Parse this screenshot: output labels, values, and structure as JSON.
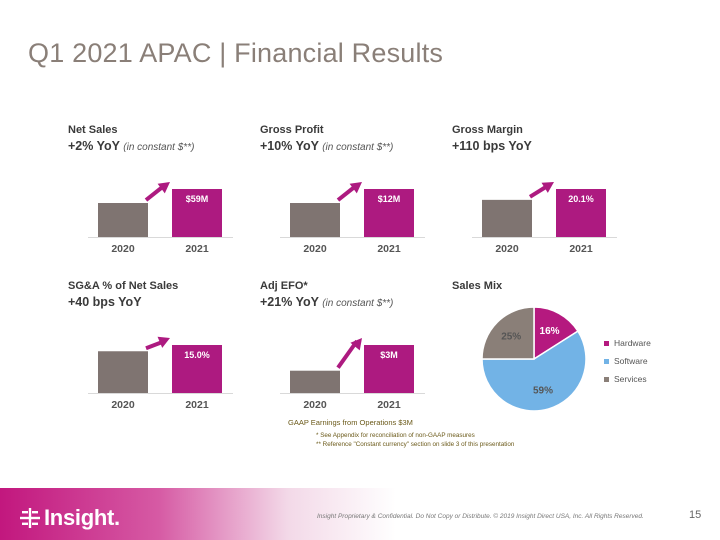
{
  "title": "Q1 2021 APAC | Financial Results",
  "colors": {
    "prior": "#7f7471",
    "current": "#ad1a80",
    "arrow": "#ad1a80",
    "hardware": "#b5197f",
    "software": "#72b3e6",
    "services": "#8a7f78"
  },
  "panels": [
    {
      "label": "Net Sales",
      "value": "+2% YoY",
      "note": "(in constant $**)"
    },
    {
      "label": "Gross Profit",
      "value": "+10% YoY",
      "note": "(in constant $**)"
    },
    {
      "label": "Gross Margin",
      "value": "+110 bps YoY",
      "note": ""
    },
    {
      "label": "SG&A % of Net Sales",
      "value": "+40 bps YoY",
      "note": ""
    },
    {
      "label": "Adj EFO*",
      "value": "+21% YoY",
      "note": "(in constant $**)"
    },
    {
      "label": "Sales Mix",
      "value": "",
      "note": ""
    }
  ],
  "chart_data": [
    {
      "type": "bar",
      "title": "Net Sales",
      "categories": [
        "2020",
        "2021"
      ],
      "values": [
        0.92,
        1.0
      ],
      "data_labels": [
        "",
        "$59M"
      ]
    },
    {
      "type": "bar",
      "title": "Gross Profit",
      "categories": [
        "2020",
        "2021"
      ],
      "values": [
        0.92,
        1.0
      ],
      "data_labels": [
        "",
        "$12M"
      ]
    },
    {
      "type": "bar",
      "title": "Gross Margin",
      "categories": [
        "2020",
        "2021"
      ],
      "values": [
        19.0,
        20.1
      ],
      "data_labels": [
        "",
        "20.1%"
      ]
    },
    {
      "type": "bar",
      "title": "SG&A % of Net Sales",
      "categories": [
        "2020",
        "2021"
      ],
      "values": [
        14.6,
        15.0
      ],
      "data_labels": [
        "",
        "15.0%"
      ]
    },
    {
      "type": "bar",
      "title": "Adj EFO*",
      "categories": [
        "2020",
        "2021"
      ],
      "values": [
        0.75,
        1.0
      ],
      "data_labels": [
        "",
        "$3M"
      ]
    },
    {
      "type": "pie",
      "title": "Sales Mix",
      "categories": [
        "Hardware",
        "Software",
        "Services"
      ],
      "values": [
        16,
        59,
        25
      ],
      "data_labels": [
        "16%",
        "59%",
        "25%"
      ],
      "legend": "right"
    }
  ],
  "gaap_note": "GAAP Earnings from Operations $3M",
  "footnotes": [
    "*   See Appendix for reconciliation of non-GAAP measures",
    "** Reference \"Constant currency\" section on slide 3 of this presentation"
  ],
  "logo_text": "Insight",
  "logo_dot": ".",
  "disclaimer": "Insight Proprietary & Confidential. Do Not Copy or Distribute. © 2019 Insight Direct USA, Inc. All Rights Reserved.",
  "page_number": "15"
}
